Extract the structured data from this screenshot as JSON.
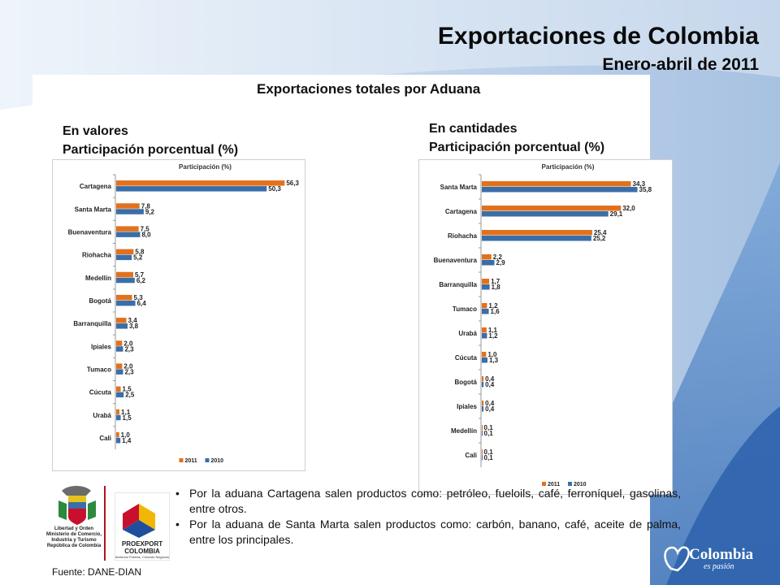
{
  "header": {
    "title": "Exportaciones de Colombia",
    "subtitle": "Enero-abril de 2011"
  },
  "center_title": "Exportaciones totales por Aduana",
  "left_section": {
    "line1": "En valores",
    "line2": "Participación porcentual (%)"
  },
  "right_section": {
    "line1": "En cantidades",
    "line2": "Participación porcentual (%)"
  },
  "chart_data": [
    {
      "type": "bar",
      "orientation": "horizontal",
      "title": "Participación (%)",
      "categories": [
        "Cartagena",
        "Santa Marta",
        "Buenaventura",
        "Riohacha",
        "Medellín",
        "Bogotá",
        "Barranquilla",
        "Ipiales",
        "Tumaco",
        "Cúcuta",
        "Urabá",
        "Cali"
      ],
      "series": [
        {
          "name": "2011",
          "color": "#e2711d",
          "values": [
            56.3,
            7.8,
            7.5,
            5.8,
            5.7,
            5.3,
            3.4,
            2.0,
            2.0,
            1.5,
            1.1,
            1.0
          ],
          "labels": [
            "56,3",
            "7,8",
            "7,5",
            "5,8",
            "5,7",
            "5,3",
            "3,4",
            "2,0",
            "2,0",
            "1,5",
            "1,1",
            "1,0"
          ]
        },
        {
          "name": "2010",
          "color": "#3a6ea8",
          "values": [
            50.3,
            9.2,
            8.0,
            5.2,
            6.2,
            6.4,
            3.8,
            2.3,
            2.3,
            2.5,
            1.5,
            1.4
          ],
          "labels": [
            "50,3",
            "9,2",
            "8,0",
            "5,2",
            "6,2",
            "6,4",
            "3,8",
            "2,3",
            "2,3",
            "2,5",
            "1,5",
            "1,4"
          ]
        }
      ],
      "xlim": [
        0,
        60
      ],
      "legend": "bottom",
      "grid": false
    },
    {
      "type": "bar",
      "orientation": "horizontal",
      "title": "Participación (%)",
      "categories": [
        "Santa Marta",
        "Cartagena",
        "Riohacha",
        "Buenaventura",
        "Barranquilla",
        "Tumaco",
        "Urabá",
        "Cúcuta",
        "Bogotá",
        "Ipiales",
        "Medellín",
        "Cali"
      ],
      "series": [
        {
          "name": "2011",
          "color": "#e2711d",
          "values": [
            34.3,
            32.0,
            25.4,
            2.2,
            1.7,
            1.2,
            1.1,
            1.0,
            0.4,
            0.4,
            0.1,
            0.1
          ],
          "labels": [
            "34,3",
            "32,0",
            "25,4",
            "2,2",
            "1,7",
            "1,2",
            "1,1",
            "1,0",
            "0,4",
            "0,4",
            "0,1",
            "0,1"
          ]
        },
        {
          "name": "2010",
          "color": "#3a6ea8",
          "values": [
            35.8,
            29.1,
            25.2,
            2.9,
            1.8,
            1.6,
            1.2,
            1.3,
            0.4,
            0.4,
            0.1,
            0.1
          ],
          "labels": [
            "35,8",
            "29,1",
            "25,2",
            "2,9",
            "1,8",
            "1,6",
            "1,2",
            "1,3",
            "0,4",
            "0,4",
            "0,1",
            "0,1"
          ]
        }
      ],
      "xlim": [
        0,
        40
      ],
      "legend": "bottom",
      "grid": false
    }
  ],
  "bullets": [
    "Por la aduana Cartagena salen productos como: petróleo, fueloils, café, ferroníquel, gasolinas, entre otros.",
    "Por la aduana de Santa Marta salen productos como: carbón, banano, café, aceite de palma, entre los principales."
  ],
  "source": "Fuente: DANE-DIAN",
  "logos": {
    "coat_of_arms_caption": [
      "Libertad y Orden",
      "Ministerio de Comercio,",
      "Industria y Turismo",
      "República de Colombia"
    ],
    "proexport_name": [
      "PROEXPORT",
      "COLOMBIA"
    ],
    "proexport_tagline": "Abriendo Puertas, Creando Negocios",
    "colombia_brand": "Colombia",
    "colombia_tagline": "es pasión"
  },
  "colors": {
    "series_2011": "#e2711d",
    "series_2010": "#3a6ea8",
    "background_blue": "#9fc2e6"
  }
}
